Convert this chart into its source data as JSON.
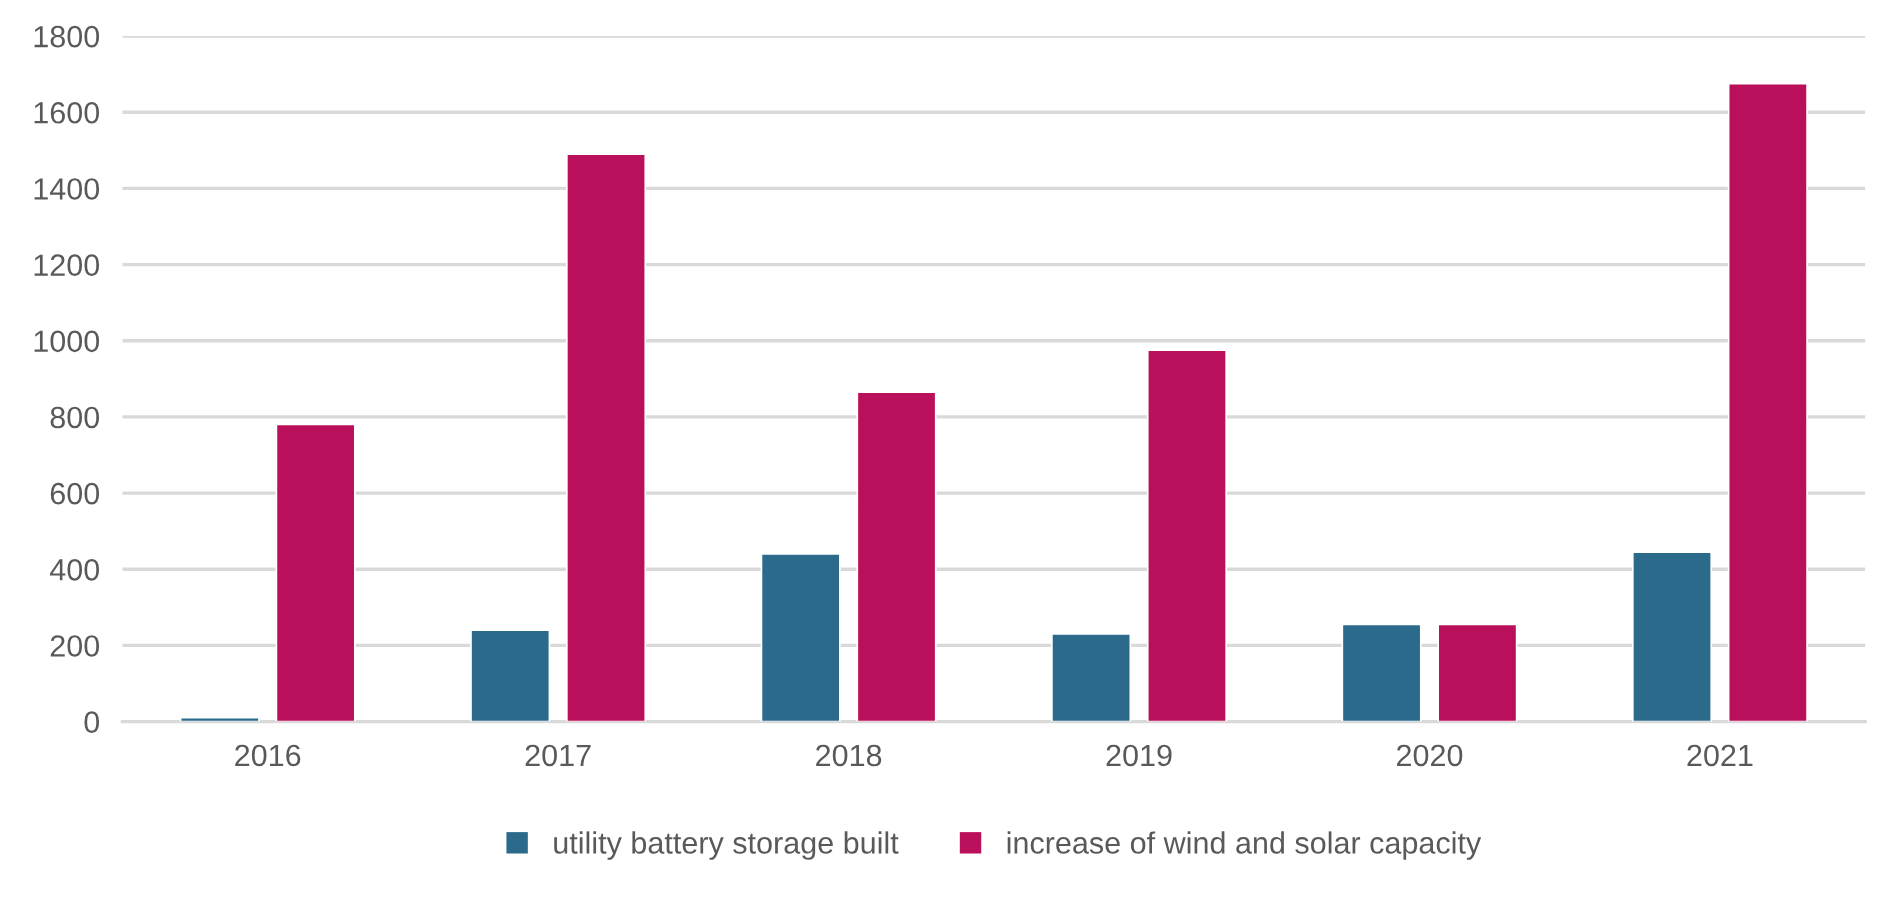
{
  "chart_data": {
    "type": "bar",
    "categories": [
      "2016",
      "2017",
      "2018",
      "2019",
      "2020",
      "2021"
    ],
    "series": [
      {
        "name": "utility battery storage built",
        "color": "#2b6a8a",
        "values": [
          10,
          240,
          440,
          230,
          255,
          445
        ]
      },
      {
        "name": "increase of wind and solar capacity",
        "color": "#ba0f5a",
        "values": [
          780,
          1490,
          865,
          975,
          255,
          1675
        ]
      }
    ],
    "ylim": [
      0,
      1800
    ],
    "yticks": [
      0,
      200,
      400,
      600,
      800,
      1000,
      1200,
      1400,
      1600,
      1800
    ],
    "grid": "y",
    "legend": "bottom"
  }
}
